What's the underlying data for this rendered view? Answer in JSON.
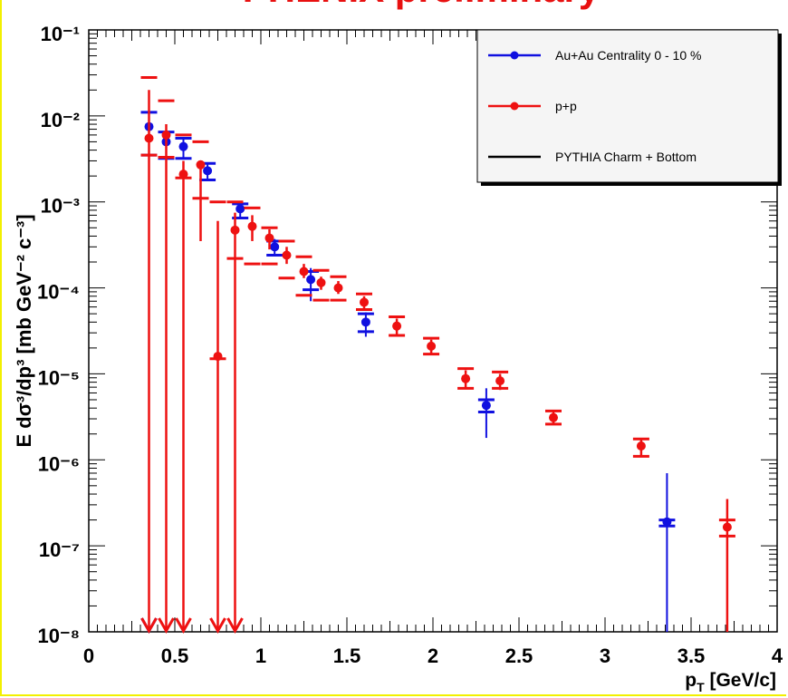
{
  "chart_data": {
    "type": "scatter",
    "title": "PHENIX preliminary",
    "xlabel": "p_T [GeV/c]",
    "ylabel": "E dσ³/dp³ [mb GeV⁻² c⁻³]",
    "xlim": [
      0,
      4
    ],
    "ylim": [
      1e-08,
      0.1
    ],
    "yscale": "log",
    "x_ticks": [
      "0",
      "0.5",
      "1",
      "1.5",
      "2",
      "2.5",
      "3",
      "3.5",
      "4"
    ],
    "y_ticks": [
      "10⁻⁸",
      "10⁻⁷",
      "10⁻⁶",
      "10⁻⁵",
      "10⁻⁴",
      "10⁻³",
      "10⁻²",
      "10⁻¹"
    ],
    "legend_position": "top-right",
    "series": [
      {
        "name": "Au+Au  Centrality 0 - 10 %",
        "color": "#1010e0",
        "points": [
          {
            "x": 0.35,
            "y": 0.0075,
            "err_low": 0.0035,
            "err_high": 0.0115,
            "sys_low": 0.0035,
            "sys_high": 0.011,
            "upper_limit": true
          },
          {
            "x": 0.45,
            "y": 0.005,
            "err_low": 0.0032,
            "err_high": 0.0065,
            "sys_low": 0.0032,
            "sys_high": 0.0065
          },
          {
            "x": 0.55,
            "y": 0.0044,
            "err_low": 0.0032,
            "err_high": 0.0055,
            "sys_low": 0.0032,
            "sys_high": 0.0055
          },
          {
            "x": 0.69,
            "y": 0.0023,
            "err_low": 0.0018,
            "err_high": 0.0028,
            "sys_low": 0.0018,
            "sys_high": 0.0028
          },
          {
            "x": 0.88,
            "y": 0.00083,
            "err_low": 0.00065,
            "err_high": 0.00095,
            "sys_low": 0.00065,
            "sys_high": 0.00095
          },
          {
            "x": 1.08,
            "y": 0.0003,
            "err_low": 0.00024,
            "err_high": 0.00037,
            "sys_low": 0.00024,
            "sys_high": 0.00035
          },
          {
            "x": 1.29,
            "y": 0.000125,
            "err_low": 7e-05,
            "err_high": 0.00017,
            "sys_low": 9.5e-05,
            "sys_high": 0.000155
          },
          {
            "x": 1.61,
            "y": 4e-05,
            "err_low": 2.7e-05,
            "err_high": 5.2e-05,
            "sys_low": 3.1e-05,
            "sys_high": 5e-05
          },
          {
            "x": 2.31,
            "y": 4.3e-06,
            "err_low": 1.8e-06,
            "err_high": 6.8e-06,
            "sys_low": 3.6e-06,
            "sys_high": 5e-06
          },
          {
            "x": 3.36,
            "y": 1.9e-07,
            "err_low": 1e-08,
            "err_high": 7e-07,
            "sys_low": 1.7e-07,
            "sys_high": 2e-07
          }
        ]
      },
      {
        "name": "p+p",
        "color": "#ee1111",
        "points": [
          {
            "x": 0.35,
            "y": 0.0055,
            "err_low": 1e-08,
            "err_high": 0.02,
            "sys_low": 0.0035,
            "sys_high": 0.028,
            "upper_limit": true
          },
          {
            "x": 0.45,
            "y": 0.006,
            "err_low": 1e-08,
            "err_high": 0.008,
            "sys_low": 0.0033,
            "sys_high": 0.015,
            "upper_limit": true
          },
          {
            "x": 0.55,
            "y": 0.0021,
            "err_low": 1e-08,
            "err_high": 0.003,
            "sys_low": 0.0019,
            "sys_high": 0.006,
            "upper_limit": true
          },
          {
            "x": 0.65,
            "y": 0.0027,
            "err_low": 0.00035,
            "err_high": 0.003,
            "sys_low": 0.0011,
            "sys_high": 0.005
          },
          {
            "x": 0.75,
            "y": 1.6e-05,
            "err_low": 1e-08,
            "err_high": 0.0006,
            "sys_low": 1.5e-05,
            "sys_high": 0.001,
            "upper_limit": true
          },
          {
            "x": 0.85,
            "y": 0.00047,
            "err_low": 0.00015,
            "err_high": 0.00075,
            "sys_low": 0.00022,
            "sys_high": 0.001,
            "upper_limit": true
          },
          {
            "x": 0.95,
            "y": 0.00052,
            "err_low": 0.00035,
            "err_high": 0.0007,
            "sys_low": 0.00019,
            "sys_high": 0.00085
          },
          {
            "x": 1.05,
            "y": 0.00038,
            "err_low": 0.00028,
            "err_high": 0.00048,
            "sys_low": 0.00019,
            "sys_high": 0.0005
          },
          {
            "x": 1.15,
            "y": 0.00024,
            "err_low": 0.00019,
            "err_high": 0.0003,
            "sys_low": 0.00013,
            "sys_high": 0.00035
          },
          {
            "x": 1.25,
            "y": 0.000155,
            "err_low": 0.00013,
            "err_high": 0.00019,
            "sys_low": 8.2e-05,
            "sys_high": 0.00023
          },
          {
            "x": 1.35,
            "y": 0.000115,
            "err_low": 9.5e-05,
            "err_high": 0.000135,
            "sys_low": 7.2e-05,
            "sys_high": 0.00016
          },
          {
            "x": 1.45,
            "y": 0.0001,
            "err_low": 8.5e-05,
            "err_high": 0.00012,
            "sys_low": 7.2e-05,
            "sys_high": 0.000135
          },
          {
            "x": 1.6,
            "y": 6.8e-05,
            "err_low": 5.8e-05,
            "err_high": 8e-05,
            "sys_low": 5.6e-05,
            "sys_high": 8.5e-05
          },
          {
            "x": 1.79,
            "y": 3.6e-05,
            "err_low": 2.9e-05,
            "err_high": 4.4e-05,
            "sys_low": 2.8e-05,
            "sys_high": 4.6e-05
          },
          {
            "x": 1.99,
            "y": 2.1e-05,
            "err_low": 1.7e-05,
            "err_high": 2.5e-05,
            "sys_low": 1.7e-05,
            "sys_high": 2.6e-05
          },
          {
            "x": 2.19,
            "y": 8.8e-06,
            "err_low": 6.8e-06,
            "err_high": 1.1e-05,
            "sys_low": 6.8e-06,
            "sys_high": 1.15e-05
          },
          {
            "x": 2.39,
            "y": 8.3e-06,
            "err_low": 6.5e-06,
            "err_high": 1e-05,
            "sys_low": 6.8e-06,
            "sys_high": 1.05e-05
          },
          {
            "x": 2.7,
            "y": 3.1e-06,
            "err_low": 2.6e-06,
            "err_high": 3.7e-06,
            "sys_low": 2.6e-06,
            "sys_high": 3.7e-06
          },
          {
            "x": 3.21,
            "y": 1.45e-06,
            "err_low": 1.1e-06,
            "err_high": 1.8e-06,
            "sys_low": 1.1e-06,
            "sys_high": 1.75e-06
          },
          {
            "x": 3.71,
            "y": 1.65e-07,
            "err_low": 1e-08,
            "err_high": 3.5e-07,
            "sys_low": 1.3e-07,
            "sys_high": 2e-07
          }
        ]
      },
      {
        "name": "PYTHIA Charm + Bottom",
        "color": "#000000",
        "points": []
      }
    ]
  }
}
